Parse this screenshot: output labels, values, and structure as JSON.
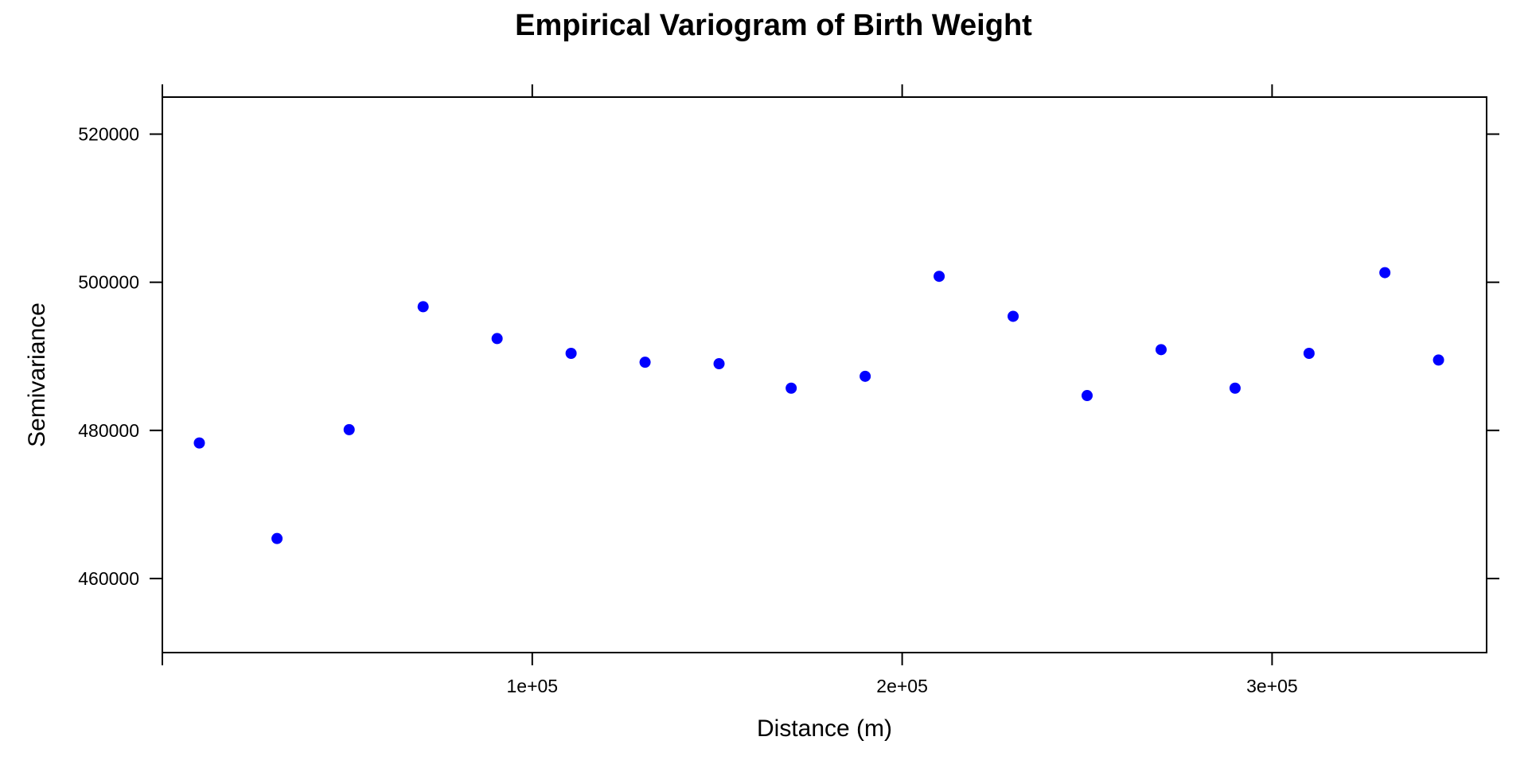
{
  "chart_data": {
    "type": "scatter",
    "title": "Empirical Variogram of Birth Weight",
    "xlabel": "Distance (m)",
    "ylabel": "Semivariance",
    "xlim": [
      0,
      358000
    ],
    "ylim": [
      450000,
      525000
    ],
    "x_ticks": [
      {
        "value": 100000,
        "label": "1e+05"
      },
      {
        "value": 200000,
        "label": "2e+05"
      },
      {
        "value": 300000,
        "label": "3e+05"
      }
    ],
    "y_ticks": [
      {
        "value": 460000,
        "label": "460000"
      },
      {
        "value": 480000,
        "label": "480000"
      },
      {
        "value": 500000,
        "label": "500000"
      },
      {
        "value": 520000,
        "label": "520000"
      }
    ],
    "grid": false,
    "legend": "none",
    "point_color": "#0000ff",
    "series": [
      {
        "x": [
          10000,
          31000,
          50500,
          70500,
          90500,
          110500,
          130500,
          150500,
          170000,
          190000,
          210000,
          230000,
          250000,
          270000,
          290000,
          310000,
          330500,
          345000
        ],
        "y": [
          478300,
          465400,
          480100,
          496700,
          492400,
          490400,
          489200,
          489000,
          485700,
          487300,
          500800,
          495400,
          484700,
          490900,
          485700,
          490400,
          501300,
          489500
        ]
      }
    ]
  }
}
